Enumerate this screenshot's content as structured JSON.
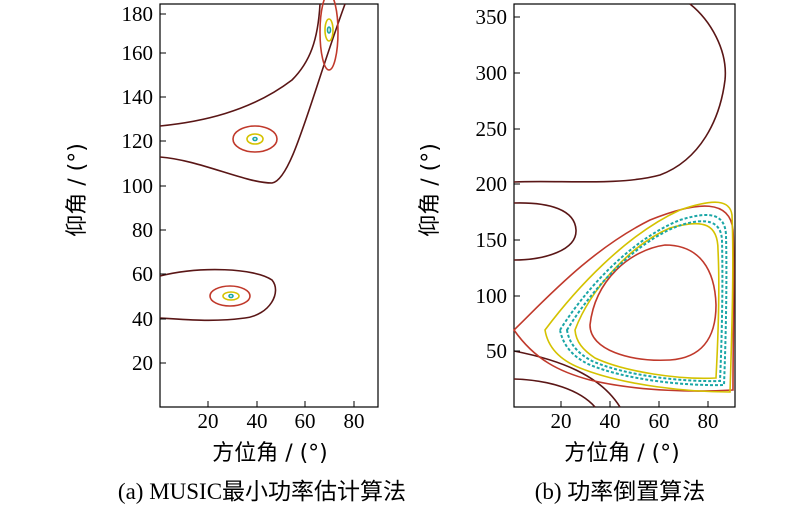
{
  "chart_data": [
    {
      "type": "contour",
      "caption": "(a) MUSIC最小功率估计算法",
      "xlabel": "方位角 / (°)",
      "ylabel": "仰角 / (°)",
      "xlim": [
        0,
        90
      ],
      "ylim": [
        0,
        182
      ],
      "xticks": [
        "20",
        "40",
        "60",
        "80"
      ],
      "yticks": [
        "20",
        "40",
        "60",
        "80",
        "100",
        "120",
        "140",
        "160",
        "180"
      ],
      "grid": false,
      "peaks": [
        {
          "x": 30,
          "y": 50
        },
        {
          "x": 40,
          "y": 120
        },
        {
          "x": 70,
          "y": 170
        }
      ],
      "colors": {
        "outer": "#5a1616",
        "mid": "#c0392b",
        "inner": "#d4c200",
        "core": "#1aa6a6"
      }
    },
    {
      "type": "contour",
      "caption": "(b) 功率倒置算法",
      "xlabel": "方位角 / (°)",
      "ylabel": "仰角 / (°)",
      "xlim": [
        0,
        90
      ],
      "ylim": [
        0,
        360
      ],
      "xticks": [
        "20",
        "40",
        "60",
        "80"
      ],
      "yticks": [
        "50",
        "100",
        "150",
        "200",
        "250",
        "300",
        "350"
      ],
      "grid": false,
      "peaks": [
        {
          "x": 68,
          "y": 100
        },
        {
          "x": 10,
          "y": 160
        }
      ],
      "colors": {
        "outer": "#5a1616",
        "mid": "#c0392b",
        "inner": "#d4c200",
        "core": "#1aa6a6"
      }
    }
  ]
}
